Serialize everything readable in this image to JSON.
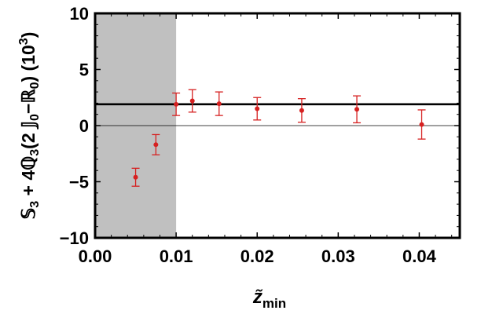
{
  "chart_data": {
    "type": "scatter",
    "xlabel": {
      "main": "z̃",
      "sub": "min"
    },
    "ylabel": [
      {
        "t": "𝕊"
      },
      {
        "t": "3",
        "sub": true
      },
      {
        "t": " + 4"
      },
      {
        "t": "ℚ"
      },
      {
        "t": "3",
        "sub": true
      },
      {
        "t": "(2 "
      },
      {
        "t": "𝕁"
      },
      {
        "t": "0",
        "sub": true
      },
      {
        "t": "−"
      },
      {
        "t": "ℝ"
      },
      {
        "t": "0",
        "sub": true
      },
      {
        "t": ") (10"
      },
      {
        "t": "3",
        "sup": true
      },
      {
        "t": ")"
      }
    ],
    "xlim": [
      0,
      0.045
    ],
    "ylim": [
      -10,
      10
    ],
    "xticks": [
      0.0,
      0.01,
      0.02,
      0.03,
      0.04
    ],
    "xtick_labels": [
      "0.00",
      "0.01",
      "0.02",
      "0.03",
      "0.04"
    ],
    "yticks": [
      -10,
      -5,
      0,
      5,
      10
    ],
    "ytick_labels": [
      "−10",
      "−5",
      "0",
      "5",
      "10"
    ],
    "shaded_region": {
      "x": [
        0,
        0.01
      ],
      "color": "#c0c0c0"
    },
    "reference_lines": [
      {
        "y": 1.9,
        "color": "#000000",
        "style": "thick"
      },
      {
        "y": 0,
        "color": "#000000",
        "style": "thin"
      }
    ],
    "series": [
      {
        "color": "#d62020",
        "points": [
          {
            "x": 0.005,
            "y": -4.6,
            "err": 0.8
          },
          {
            "x": 0.0075,
            "y": -1.7,
            "err": 0.9
          },
          {
            "x": 0.01,
            "y": 1.9,
            "err": 1.0
          },
          {
            "x": 0.012,
            "y": 2.2,
            "err": 1.0
          },
          {
            "x": 0.0153,
            "y": 1.95,
            "err": 1.05
          },
          {
            "x": 0.02,
            "y": 1.5,
            "err": 1.0
          },
          {
            "x": 0.0255,
            "y": 1.35,
            "err": 1.05
          },
          {
            "x": 0.0323,
            "y": 1.45,
            "err": 1.2
          },
          {
            "x": 0.0403,
            "y": 0.1,
            "err": 1.3
          }
        ]
      }
    ]
  }
}
